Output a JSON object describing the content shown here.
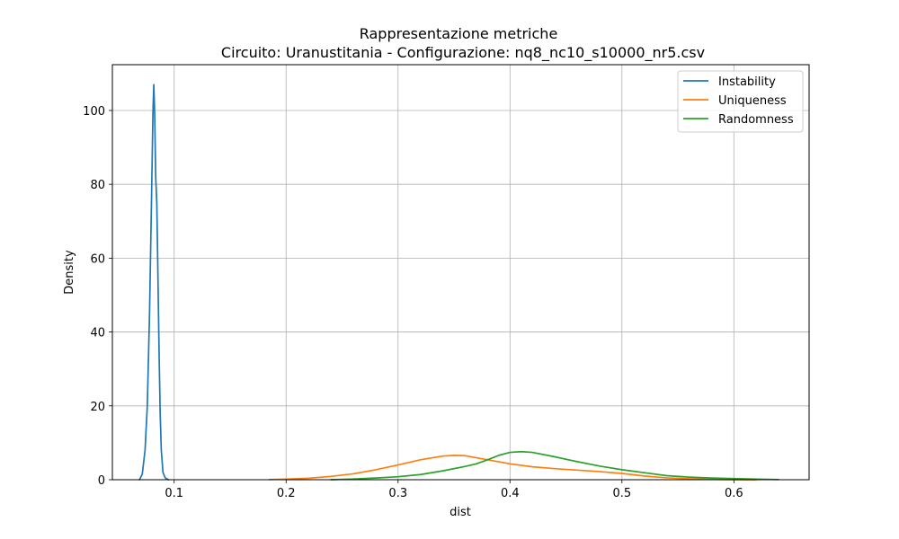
{
  "chart_data": {
    "type": "line",
    "title": "Rappresentazione metriche",
    "subtitle": "Circuito: Uranustitania - Configurazione: nq8_nc10_s10000_nr5.csv",
    "xlabel": "dist",
    "ylabel": "Density",
    "xlim": [
      0.0448,
      0.6672
    ],
    "ylim": [
      0,
      112.4
    ],
    "x_ticks": [
      0.1,
      0.2,
      0.3,
      0.4,
      0.5,
      0.6
    ],
    "y_ticks": [
      0,
      20,
      40,
      60,
      80,
      100
    ],
    "x_tick_labels": [
      "0.1",
      "0.2",
      "0.3",
      "0.4",
      "0.5",
      "0.6"
    ],
    "y_tick_labels": [
      "0",
      "20",
      "40",
      "60",
      "80",
      "100"
    ],
    "grid": true,
    "legend_position": "top-right",
    "series": [
      {
        "name": "Instability",
        "color": "#1f77b4",
        "points": [
          [
            0.069,
            0.0
          ],
          [
            0.0715,
            1.5
          ],
          [
            0.074,
            8.0
          ],
          [
            0.076,
            20.0
          ],
          [
            0.078,
            45.0
          ],
          [
            0.08,
            80.0
          ],
          [
            0.081,
            99.0
          ],
          [
            0.0818,
            107.0
          ],
          [
            0.0826,
            99.0
          ],
          [
            0.0835,
            82.0
          ],
          [
            0.0845,
            75.0
          ],
          [
            0.0855,
            55.0
          ],
          [
            0.0865,
            35.0
          ],
          [
            0.0875,
            18.0
          ],
          [
            0.0885,
            8.0
          ],
          [
            0.09,
            2.0
          ],
          [
            0.092,
            0.5
          ],
          [
            0.095,
            0.0
          ]
        ]
      },
      {
        "name": "Uniqueness",
        "color": "#ff7f0e",
        "points": [
          [
            0.185,
            0.05
          ],
          [
            0.2,
            0.15
          ],
          [
            0.22,
            0.4
          ],
          [
            0.24,
            0.9
          ],
          [
            0.26,
            1.6
          ],
          [
            0.28,
            2.7
          ],
          [
            0.3,
            4.0
          ],
          [
            0.32,
            5.4
          ],
          [
            0.34,
            6.4
          ],
          [
            0.35,
            6.6
          ],
          [
            0.36,
            6.5
          ],
          [
            0.38,
            5.4
          ],
          [
            0.4,
            4.3
          ],
          [
            0.42,
            3.5
          ],
          [
            0.44,
            3.0
          ],
          [
            0.46,
            2.6
          ],
          [
            0.48,
            2.2
          ],
          [
            0.5,
            1.7
          ],
          [
            0.52,
            1.0
          ],
          [
            0.54,
            0.5
          ],
          [
            0.56,
            0.25
          ],
          [
            0.58,
            0.1
          ],
          [
            0.6,
            0.03
          ],
          [
            0.62,
            0.0
          ]
        ]
      },
      {
        "name": "Randomness",
        "color": "#2ca02c",
        "points": [
          [
            0.24,
            0.0
          ],
          [
            0.26,
            0.2
          ],
          [
            0.28,
            0.45
          ],
          [
            0.3,
            0.8
          ],
          [
            0.32,
            1.4
          ],
          [
            0.34,
            2.4
          ],
          [
            0.36,
            3.6
          ],
          [
            0.37,
            4.3
          ],
          [
            0.38,
            5.4
          ],
          [
            0.39,
            6.6
          ],
          [
            0.4,
            7.4
          ],
          [
            0.41,
            7.6
          ],
          [
            0.42,
            7.4
          ],
          [
            0.44,
            6.2
          ],
          [
            0.46,
            4.9
          ],
          [
            0.48,
            3.7
          ],
          [
            0.5,
            2.7
          ],
          [
            0.52,
            1.9
          ],
          [
            0.54,
            1.1
          ],
          [
            0.56,
            0.7
          ],
          [
            0.58,
            0.45
          ],
          [
            0.6,
            0.3
          ],
          [
            0.62,
            0.15
          ],
          [
            0.64,
            0.05
          ]
        ]
      }
    ]
  }
}
